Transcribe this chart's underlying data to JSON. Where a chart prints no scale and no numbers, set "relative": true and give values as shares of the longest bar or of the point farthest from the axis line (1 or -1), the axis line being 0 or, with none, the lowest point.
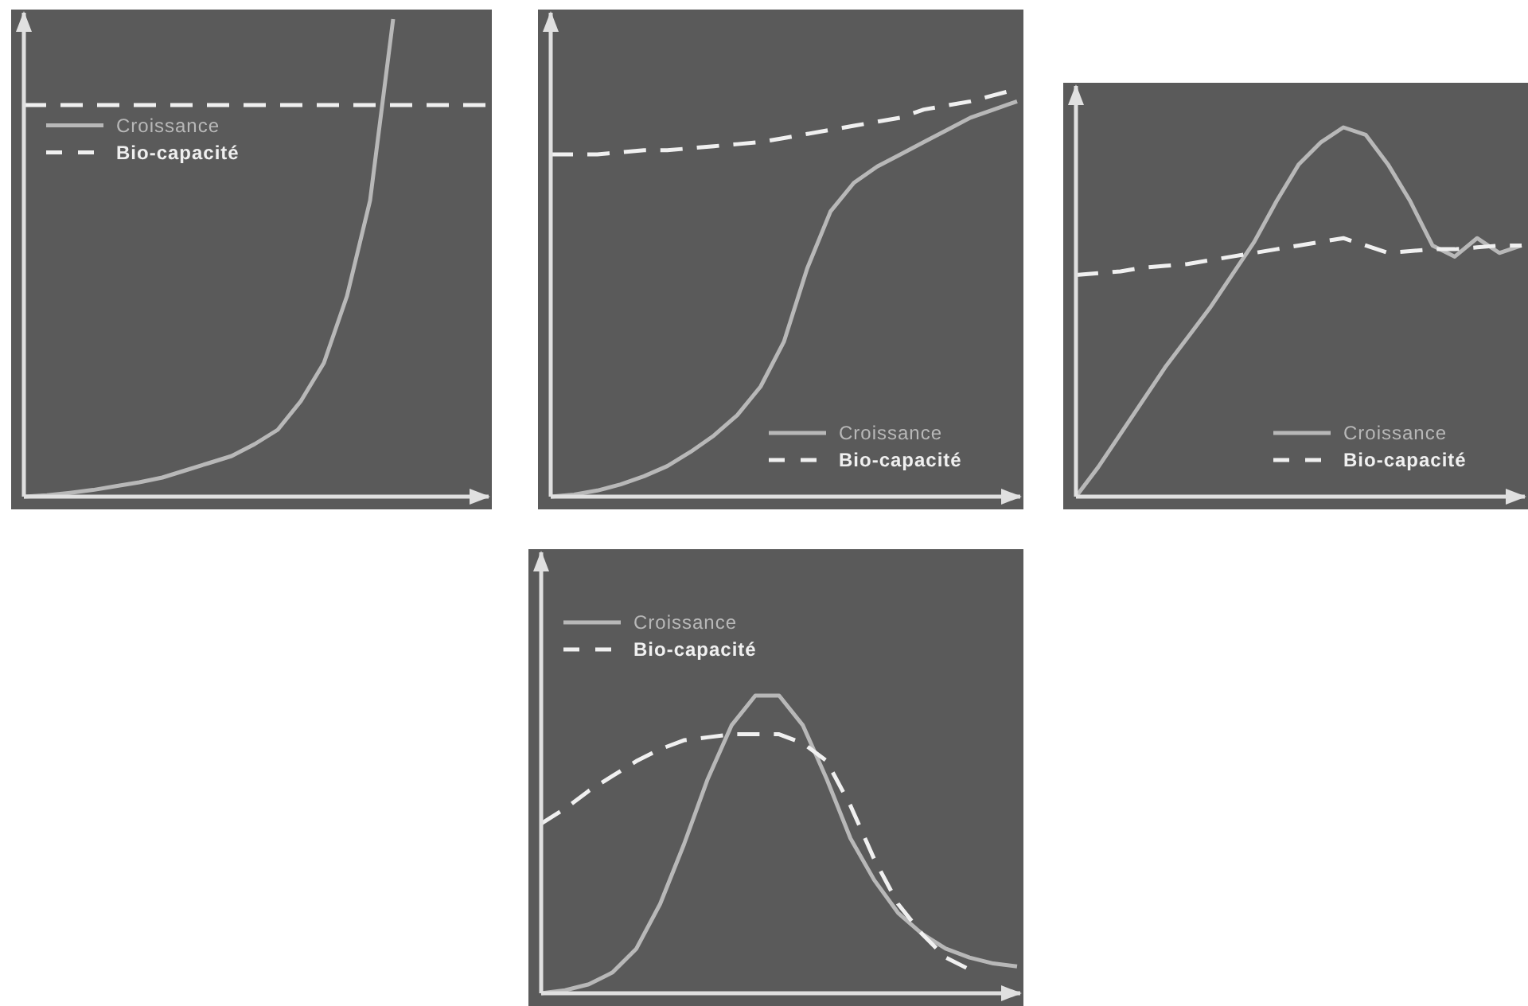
{
  "chart_data": [
    {
      "type": "line",
      "relative": true,
      "legend": "top left",
      "categories": [
        null,
        null,
        null,
        null,
        null,
        null,
        null,
        null,
        null,
        null,
        null,
        null,
        null,
        null,
        null,
        null,
        null,
        null,
        null,
        null,
        null
      ],
      "series": [
        {
          "name": "Croissance",
          "color": "#b8b8b8",
          "line_style": "solid",
          "values": [
            0,
            0.003,
            0.008,
            0.014,
            0.022,
            0.03,
            0.04,
            0.055,
            0.07,
            0.085,
            0.11,
            0.14,
            0.2,
            0.28,
            0.42,
            0.62,
            1,
            null,
            null,
            null,
            null
          ]
        },
        {
          "name": "Bio-capacité",
          "color": "#f0f0f0",
          "line_style": "dashed",
          "values": [
            0.82,
            0.82,
            0.82,
            0.82,
            0.82,
            0.82,
            0.82,
            0.82,
            0.82,
            0.82,
            0.82,
            0.82,
            0.82,
            0.82,
            0.82,
            0.82,
            0.82,
            0.82,
            0.82,
            0.82,
            0.82
          ]
        }
      ]
    },
    {
      "type": "line",
      "relative": true,
      "legend": "bottom right",
      "categories": [
        null,
        null,
        null,
        null,
        null,
        null,
        null,
        null,
        null,
        null,
        null,
        null,
        null,
        null,
        null,
        null,
        null,
        null,
        null,
        null,
        null
      ],
      "series": [
        {
          "name": "Croissance",
          "color": "#b8b8b8",
          "line_style": "solid",
          "values": [
            0,
            0.005,
            0.015,
            0.03,
            0.05,
            0.075,
            0.11,
            0.15,
            0.2,
            0.27,
            0.38,
            0.56,
            0.7,
            0.77,
            0.81,
            0.84,
            0.87,
            0.9,
            0.93,
            0.95,
            0.97
          ]
        },
        {
          "name": "Bio-capacité",
          "color": "#f0f0f0",
          "line_style": "dashed",
          "values": [
            0.84,
            0.84,
            0.84,
            0.845,
            0.85,
            0.85,
            0.855,
            0.86,
            0.865,
            0.87,
            0.88,
            0.89,
            0.9,
            0.91,
            0.92,
            0.93,
            0.95,
            0.96,
            0.97,
            0.985,
            1
          ]
        }
      ]
    },
    {
      "type": "line",
      "relative": true,
      "legend": "bottom right",
      "categories": [
        null,
        null,
        null,
        null,
        null,
        null,
        null,
        null,
        null,
        null,
        null,
        null,
        null,
        null,
        null,
        null,
        null,
        null,
        null,
        null,
        null
      ],
      "series": [
        {
          "name": "Croissance",
          "color": "#b8b8b8",
          "line_style": "solid",
          "values": [
            0,
            0.08,
            0.17,
            0.26,
            0.35,
            0.43,
            0.51,
            0.6,
            0.69,
            0.8,
            0.9,
            0.96,
            1,
            0.98,
            0.9,
            0.8,
            0.68,
            0.65,
            0.7,
            0.66,
            0.68
          ]
        },
        {
          "name": "Bio-capacité",
          "color": "#f0f0f0",
          "line_style": "dashed",
          "values": [
            0.6,
            0.605,
            0.61,
            0.62,
            0.625,
            0.63,
            0.64,
            0.65,
            0.66,
            0.67,
            0.68,
            0.69,
            0.7,
            0.68,
            0.66,
            0.665,
            0.67,
            0.67,
            0.675,
            0.68,
            0.68
          ]
        }
      ]
    },
    {
      "type": "line",
      "relative": true,
      "legend": "top left",
      "categories": [
        null,
        null,
        null,
        null,
        null,
        null,
        null,
        null,
        null,
        null,
        null,
        null,
        null,
        null,
        null,
        null,
        null,
        null,
        null,
        null,
        null
      ],
      "series": [
        {
          "name": "Croissance",
          "color": "#b8b8b8",
          "line_style": "solid",
          "values": [
            0,
            0.01,
            0.03,
            0.07,
            0.15,
            0.3,
            0.5,
            0.72,
            0.9,
            1,
            1,
            0.9,
            0.72,
            0.52,
            0.38,
            0.27,
            0.2,
            0.15,
            0.12,
            0.1,
            0.09
          ]
        },
        {
          "name": "Bio-capacité",
          "color": "#f0f0f0",
          "line_style": "dashed",
          "values": [
            0.57,
            0.62,
            0.68,
            0.73,
            0.78,
            0.82,
            0.85,
            0.86,
            0.87,
            0.87,
            0.87,
            0.84,
            0.78,
            0.63,
            0.45,
            0.3,
            0.2,
            0.12,
            0.08,
            null,
            null
          ]
        }
      ]
    }
  ]
}
